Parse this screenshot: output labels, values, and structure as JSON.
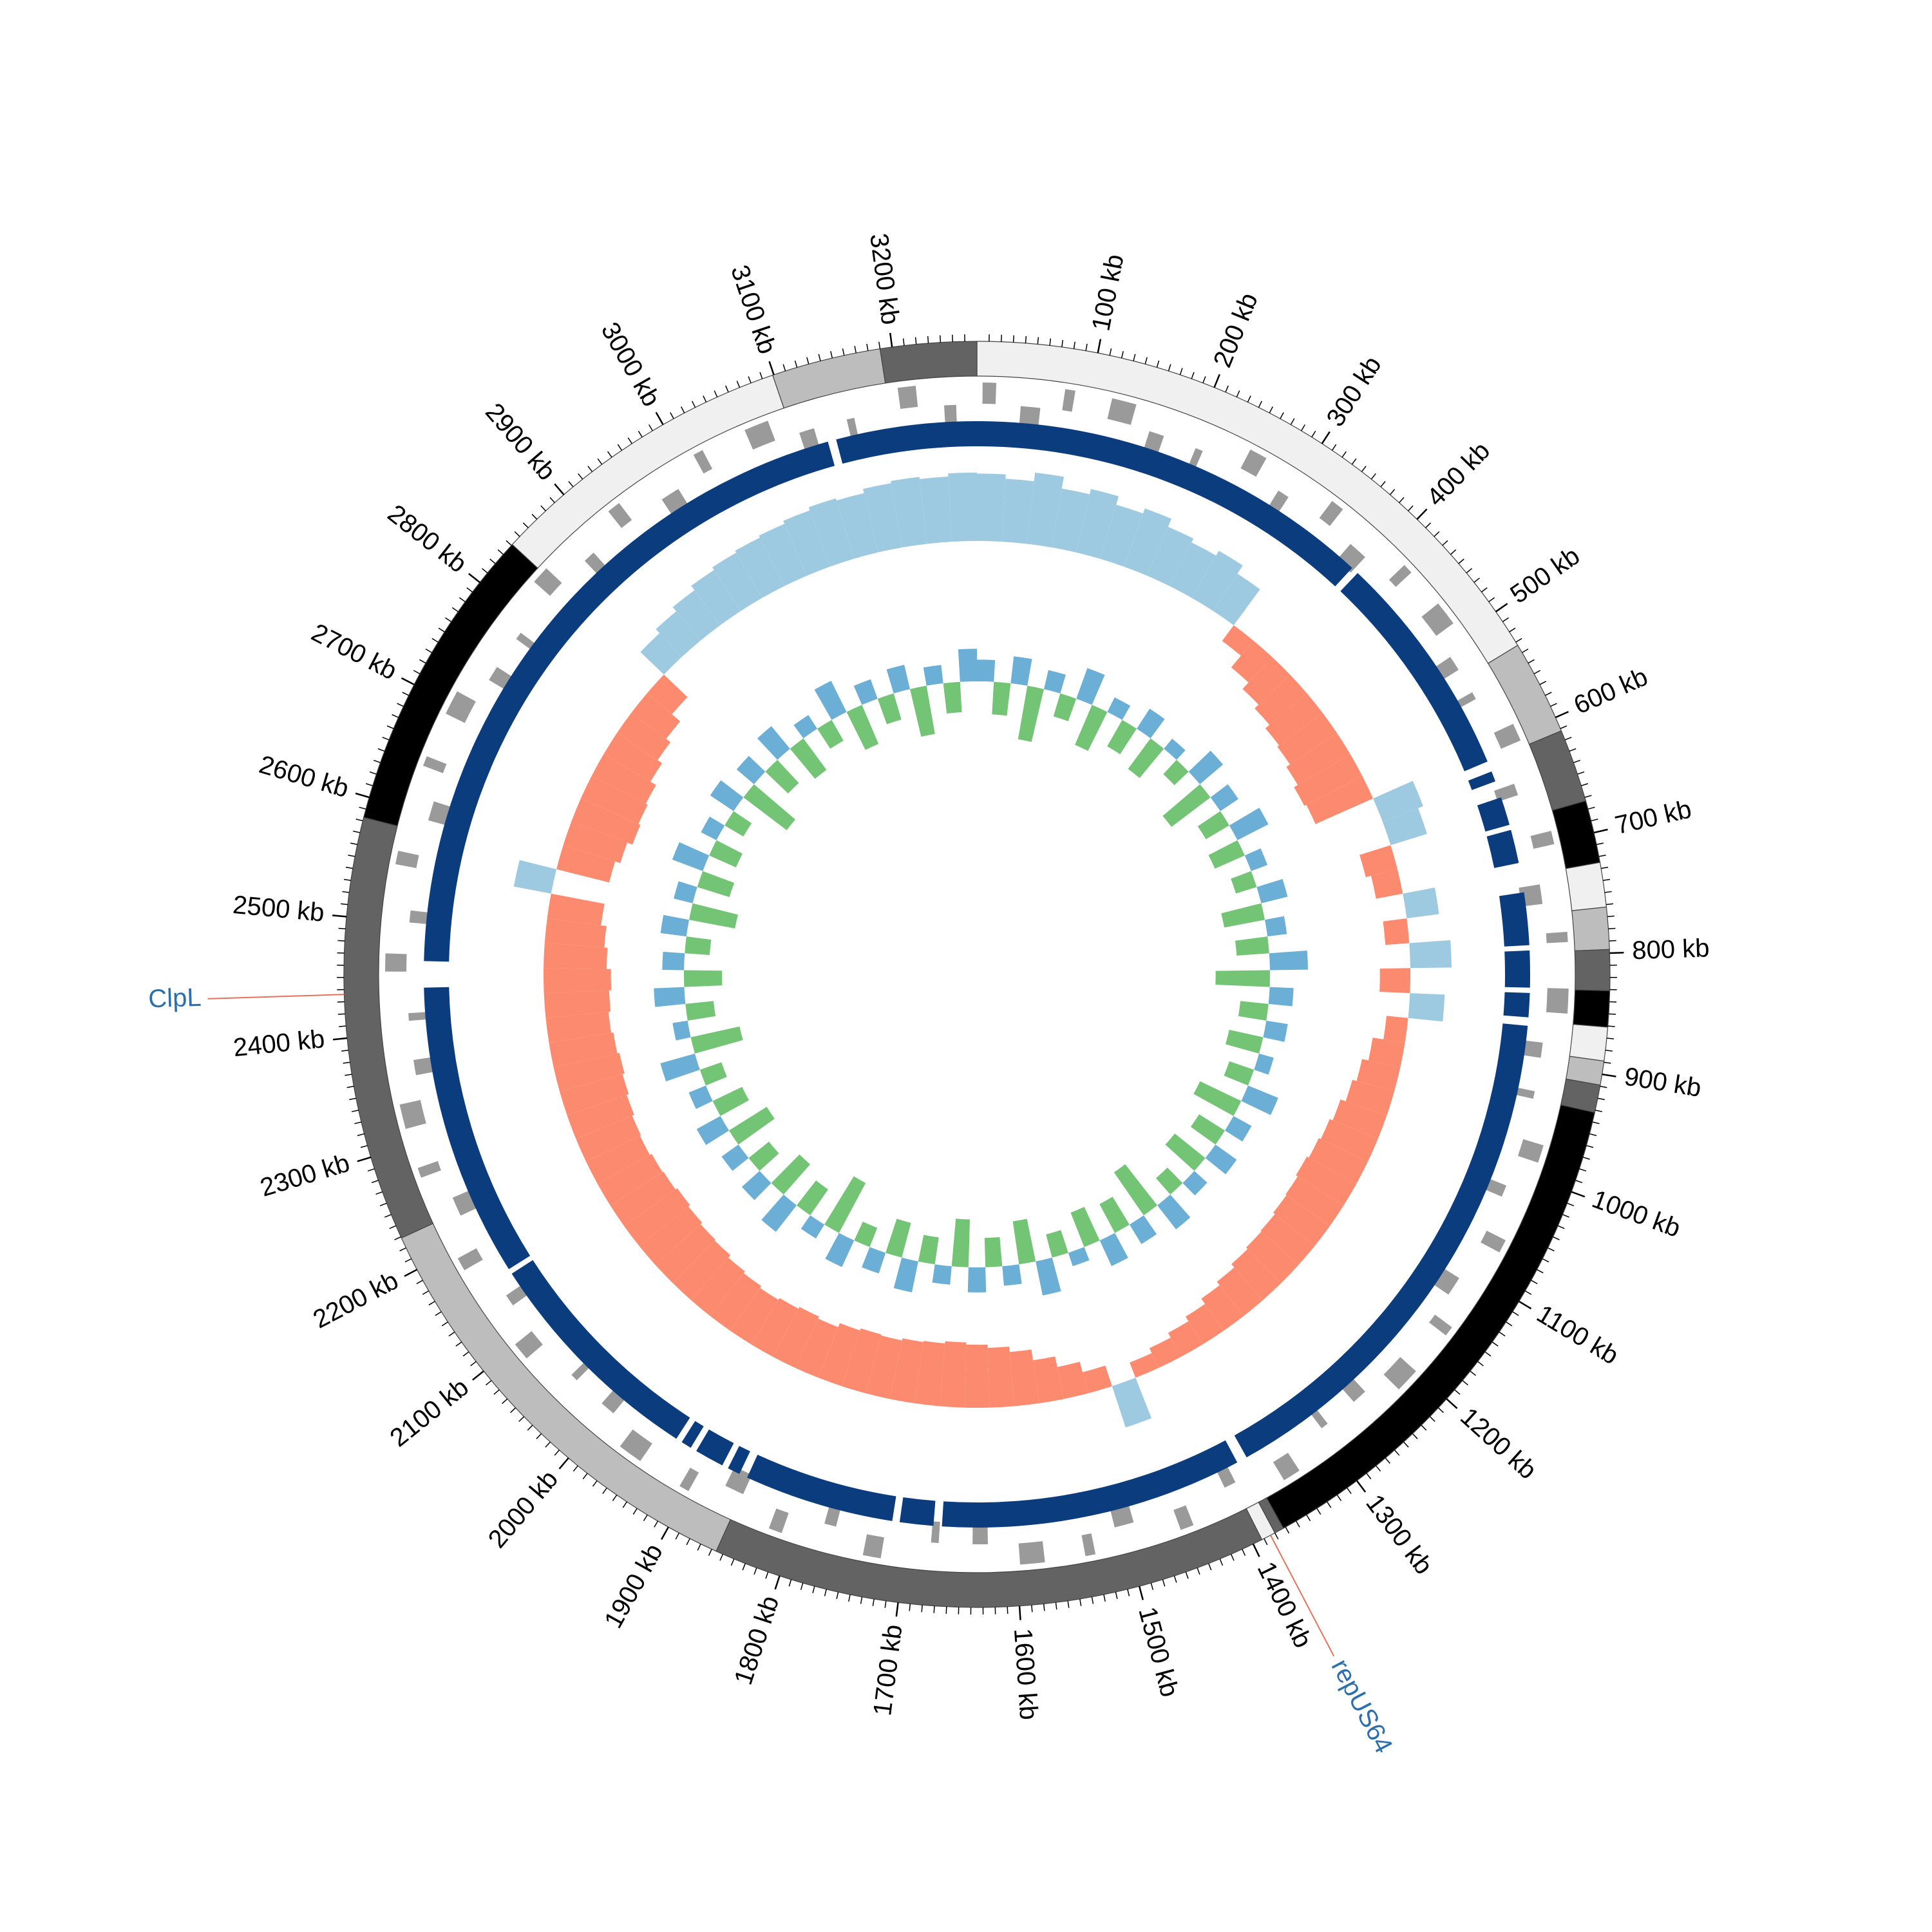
{
  "chart_data": {
    "type": "circular-genome",
    "xlim": [
      0,
      3270
    ],
    "xticks": [
      {
        "value": 100,
        "label": "100 kb"
      },
      {
        "value": 200,
        "label": "200 kb"
      },
      {
        "value": 300,
        "label": "300 kb"
      },
      {
        "value": 400,
        "label": "400 kb"
      },
      {
        "value": 500,
        "label": "500 kb"
      },
      {
        "value": 600,
        "label": "600 kb"
      },
      {
        "value": 700,
        "label": "700 kb"
      },
      {
        "value": 800,
        "label": "800 kb"
      },
      {
        "value": 900,
        "label": "900 kb"
      },
      {
        "value": 1000,
        "label": "1000 kb"
      },
      {
        "value": 1100,
        "label": "1100 kb"
      },
      {
        "value": 1200,
        "label": "1200 kb"
      },
      {
        "value": 1300,
        "label": "1300 kb"
      },
      {
        "value": 1400,
        "label": "1400 kb"
      },
      {
        "value": 1500,
        "label": "1500 kb"
      },
      {
        "value": 1600,
        "label": "1600 kb"
      },
      {
        "value": 1700,
        "label": "1700 kb"
      },
      {
        "value": 1800,
        "label": "1800 kb"
      },
      {
        "value": 1900,
        "label": "1900 kb"
      },
      {
        "value": 2000,
        "label": "2000 kb"
      },
      {
        "value": 2100,
        "label": "2100 kb"
      },
      {
        "value": 2200,
        "label": "2200 kb"
      },
      {
        "value": 2300,
        "label": "2300 kb"
      },
      {
        "value": 2400,
        "label": "2400 kb"
      },
      {
        "value": 2500,
        "label": "2500 kb"
      },
      {
        "value": 2600,
        "label": "2600 kb"
      },
      {
        "value": 2700,
        "label": "2700 kb"
      },
      {
        "value": 2800,
        "label": "2800 kb"
      },
      {
        "value": 2900,
        "label": "2900 kb"
      },
      {
        "value": 3000,
        "label": "3000 kb"
      },
      {
        "value": 3100,
        "label": "3100 kb"
      },
      {
        "value": 3200,
        "label": "3200 kb"
      }
    ],
    "minor_xtick_step": 10,
    "contigs": {
      "starts": [
        0,
        533,
        612,
        673,
        725,
        762,
        797,
        831,
        861,
        889,
        909,
        932,
        1372,
        1380,
        1392,
        1856,
        2229,
        2583,
        2841,
        3099,
        3190
      ],
      "ends": [
        533,
        612,
        673,
        725,
        762,
        797,
        831,
        861,
        889,
        909,
        932,
        1372,
        1380,
        1392,
        1856,
        2229,
        2583,
        2841,
        3099,
        3190,
        3270
      ],
      "colors": [
        "#f0f0f0",
        "#bdbdbd",
        "#636363",
        "#000000",
        "#f0f0f0",
        "#bdbdbd",
        "#636363",
        "#000000",
        "#f0f0f0",
        "#bdbdbd",
        "#636363",
        "#000000",
        "#636363",
        "#f0f0f0",
        "#636363",
        "#bdbdbd",
        "#636363",
        "#000000",
        "#f0f0f0",
        "#bdbdbd",
        "#636363"
      ]
    },
    "genes": {
      "color": "#9a9a9a",
      "items": [
        [
          5,
          17,
          1
        ],
        [
          40,
          58,
          -1
        ],
        [
          78,
          87,
          1
        ],
        [
          120,
          142,
          1
        ],
        [
          160,
          174,
          -1
        ],
        [
          205,
          212,
          -1
        ],
        [
          250,
          266,
          1
        ],
        [
          290,
          301,
          -1
        ],
        [
          335,
          347,
          1
        ],
        [
          372,
          390,
          -1
        ],
        [
          420,
          429,
          1
        ],
        [
          465,
          487,
          1
        ],
        [
          510,
          524,
          -1
        ],
        [
          548,
          555,
          -1
        ],
        [
          590,
          606,
          1
        ],
        [
          640,
          651,
          -1
        ],
        [
          690,
          702,
          1
        ],
        [
          735,
          753,
          -1
        ],
        [
          780,
          789,
          1
        ],
        [
          830,
          852,
          1
        ],
        [
          880,
          894,
          -1
        ],
        [
          925,
          932,
          -1
        ],
        [
          970,
          986,
          1
        ],
        [
          1015,
          1026,
          -1
        ],
        [
          1060,
          1072,
          1
        ],
        [
          1110,
          1128,
          -1
        ],
        [
          1150,
          1159,
          1
        ],
        [
          1200,
          1222,
          1
        ],
        [
          1245,
          1259,
          -1
        ],
        [
          1290,
          1297,
          -1
        ],
        [
          1335,
          1351,
          1
        ],
        [
          1390,
          1401,
          -1
        ],
        [
          1440,
          1452,
          1
        ],
        [
          1490,
          1508,
          -1
        ],
        [
          1530,
          1539,
          1
        ],
        [
          1575,
          1597,
          1
        ],
        [
          1625,
          1639,
          -1
        ],
        [
          1670,
          1677,
          -1
        ],
        [
          1720,
          1736,
          1
        ],
        [
          1765,
          1776,
          -1
        ],
        [
          1810,
          1822,
          1
        ],
        [
          1855,
          1873,
          -1
        ],
        [
          1900,
          1909,
          1
        ],
        [
          1950,
          1972,
          1
        ],
        [
          1995,
          2009,
          -1
        ],
        [
          2040,
          2047,
          -1
        ],
        [
          2085,
          2101,
          1
        ],
        [
          2130,
          2141,
          -1
        ],
        [
          2180,
          2192,
          1
        ],
        [
          2225,
          2243,
          -1
        ],
        [
          2270,
          2279,
          1
        ],
        [
          2315,
          2337,
          1
        ],
        [
          2360,
          2374,
          -1
        ],
        [
          2410,
          2417,
          -1
        ],
        [
          2455,
          2471,
          1
        ],
        [
          2500,
          2511,
          -1
        ],
        [
          2550,
          2562,
          1
        ],
        [
          2595,
          2613,
          -1
        ],
        [
          2640,
          2649,
          1
        ],
        [
          2690,
          2712,
          1
        ],
        [
          2735,
          2749,
          -1
        ],
        [
          2780,
          2787,
          -1
        ],
        [
          2830,
          2846,
          1
        ],
        [
          2875,
          2886,
          -1
        ],
        [
          2920,
          2932,
          1
        ],
        [
          2965,
          2983,
          -1
        ],
        [
          3010,
          3019,
          1
        ],
        [
          3060,
          3082,
          1
        ],
        [
          3105,
          3119,
          -1
        ],
        [
          3150,
          3157,
          -1
        ],
        [
          3200,
          3216,
          1
        ],
        [
          3240,
          3251,
          -1
        ]
      ]
    },
    "blocks": {
      "color": "#0b3d7e",
      "starts": [
        0,
        395,
        622,
        648,
        680,
        740,
        795,
        835,
        866,
        1380,
        1676,
        1715,
        1866,
        1884,
        1918,
        1934,
        2160,
        2465,
        3136
      ],
      "ends": [
        388,
        612,
        632,
        675,
        712,
        790,
        830,
        858,
        1370,
        1668,
        1708,
        1858,
        1878,
        1912,
        1928,
        2155,
        2440,
        3128,
        3270
      ]
    },
    "bins": [
      0,
      30,
      60,
      90,
      120,
      150,
      180,
      210,
      240,
      270,
      300,
      330,
      360,
      390,
      420,
      450,
      480,
      510,
      540,
      570,
      600,
      630,
      660,
      690,
      720,
      750,
      780,
      810,
      840,
      870,
      900,
      930,
      960,
      990,
      1020,
      1050,
      1080,
      1110,
      1140,
      1170,
      1200,
      1230,
      1260,
      1290,
      1320,
      1350,
      1380,
      1410,
      1440,
      1470,
      1500,
      1530,
      1560,
      1590,
      1620,
      1650,
      1680,
      1710,
      1740,
      1770,
      1800,
      1830,
      1860,
      1890,
      1920,
      1950,
      1980,
      2010,
      2040,
      2070,
      2100,
      2130,
      2160,
      2190,
      2220,
      2250,
      2280,
      2310,
      2340,
      2370,
      2400,
      2430,
      2460,
      2490,
      2520,
      2550,
      2580,
      2610,
      2640,
      2670,
      2700,
      2730,
      2760,
      2790,
      2820,
      2850,
      2880,
      2910,
      2940,
      2970,
      3000,
      3030,
      3060,
      3090,
      3120,
      3150,
      3180,
      3210,
      3240,
      3270
    ],
    "gc_skew": {
      "ylim": [
        -0.08,
        0.08
      ],
      "positive_color": "#9ecae1",
      "negative_color": "#fb8a6e",
      "values": [
        0.062,
        0.058,
        0.066,
        0.055,
        0.06,
        0.052,
        0.057,
        0.049,
        0.045,
        0.05,
        0.041,
        -0.018,
        -0.032,
        -0.04,
        -0.045,
        -0.05,
        -0.052,
        -0.056,
        -0.06,
        -0.058,
        0.04,
        0.035,
        -0.03,
        -0.025,
        0.03,
        -0.022,
        0.038,
        -0.028,
        0.032,
        -0.02,
        -0.03,
        -0.036,
        -0.04,
        -0.045,
        -0.048,
        -0.05,
        -0.052,
        -0.05,
        -0.049,
        -0.047,
        -0.046,
        -0.044,
        -0.04,
        -0.036,
        -0.03,
        -0.025,
        -0.02,
        -0.015,
        0.04,
        -0.02,
        -0.03,
        -0.04,
        -0.05,
        -0.055,
        -0.058,
        -0.06,
        -0.058,
        -0.057,
        -0.055,
        -0.056,
        -0.054,
        -0.05,
        -0.052,
        -0.05,
        -0.048,
        -0.05,
        -0.052,
        -0.055,
        -0.056,
        -0.058,
        -0.06,
        -0.058,
        -0.057,
        -0.055,
        -0.056,
        -0.058,
        -0.06,
        -0.062,
        -0.06,
        -0.058,
        -0.06,
        -0.062,
        -0.058,
        -0.055,
        -0.05,
        0.035,
        -0.05,
        -0.055,
        -0.06,
        -0.058,
        -0.056,
        -0.05,
        -0.045,
        -0.04,
        -0.03,
        0.03,
        0.035,
        0.04,
        0.045,
        0.048,
        0.05,
        0.052,
        0.055,
        0.058,
        0.056,
        0.06,
        0.062,
        0.06,
        0.063
      ]
    },
    "gc_content": {
      "ylim": [
        -0.08,
        0.08
      ],
      "positive_color": "#6baed6",
      "negative_color": "#74c476",
      "values": [
        0.02,
        -0.03,
        0.025,
        -0.05,
        0.018,
        -0.022,
        0.03,
        -0.04,
        0.015,
        -0.028,
        0.022,
        -0.035,
        0.012,
        -0.018,
        0.028,
        -0.045,
        0.02,
        -0.025,
        0.032,
        -0.03,
        0.016,
        -0.02,
        0.025,
        -0.038,
        0.018,
        -0.03,
        0.035,
        -0.05,
        0.022,
        -0.026,
        0.02,
        -0.032,
        0.014,
        -0.024,
        0.03,
        -0.042,
        0.019,
        -0.028,
        0.024,
        -0.036,
        0.016,
        -0.02,
        0.028,
        -0.048,
        0.021,
        -0.03,
        0.026,
        -0.034,
        0.013,
        -0.022,
        0.032,
        -0.04,
        0.018,
        -0.027,
        0.023,
        -0.044,
        0.017,
        -0.025,
        0.029,
        -0.033,
        0.02,
        -0.019,
        0.027,
        -0.052,
        0.015,
        -0.029,
        0.031,
        -0.037,
        0.022,
        -0.024,
        0.019,
        -0.041,
        0.025,
        -0.03,
        0.017,
        -0.021,
        0.033,
        -0.046,
        0.014,
        -0.026,
        0.028,
        -0.035,
        0.02,
        -0.023,
        0.024,
        -0.043,
        0.018,
        -0.031,
        0.03,
        -0.027,
        0.016,
        -0.02,
        0.026,
        -0.05,
        0.021,
        -0.029,
        0.027,
        -0.036,
        0.015,
        -0.022,
        0.032,
        -0.039,
        0.019,
        -0.025,
        0.023,
        -0.045,
        0.017,
        -0.028,
        0.03
      ]
    },
    "annotations": [
      {
        "label": "ClpL",
        "position": 2436
      },
      {
        "label": "repUS64",
        "position": 1384
      }
    ],
    "annotation_color": "#2b6fad",
    "leader_color": "#e8705a"
  }
}
